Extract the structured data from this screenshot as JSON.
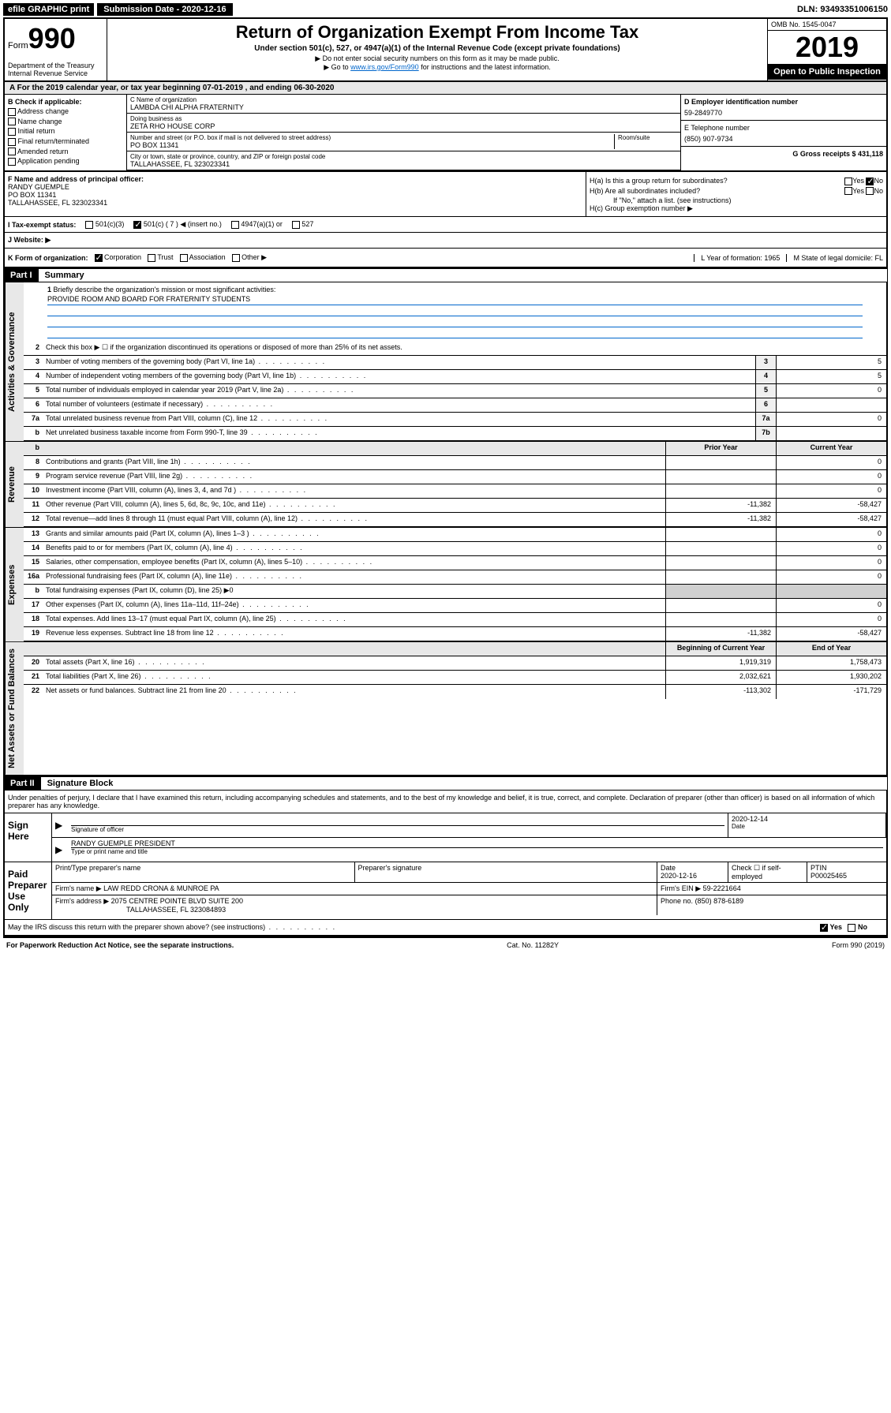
{
  "top": {
    "efile": "efile GRAPHIC print",
    "submission": "Submission Date - 2020-12-16",
    "dln": "DLN: 93493351006150"
  },
  "header": {
    "form_prefix": "Form",
    "form_num": "990",
    "dept": "Department of the Treasury\nInternal Revenue Service",
    "title": "Return of Organization Exempt From Income Tax",
    "subtitle": "Under section 501(c), 527, or 4947(a)(1) of the Internal Revenue Code (except private foundations)",
    "note1": "▶ Do not enter social security numbers on this form as it may be made public.",
    "note2_pre": "▶ Go to ",
    "note2_link": "www.irs.gov/Form990",
    "note2_post": " for instructions and the latest information.",
    "omb": "OMB No. 1545-0047",
    "year": "2019",
    "open": "Open to Public Inspection"
  },
  "period": "A   For the 2019 calendar year, or tax year beginning 07-01-2019    , and ending 06-30-2020",
  "colB": {
    "label": "B Check if applicable:",
    "items": [
      "Address change",
      "Name change",
      "Initial return",
      "Final return/terminated",
      "Amended return",
      "Application pending"
    ]
  },
  "colC": {
    "name_label": "C Name of organization",
    "name": "LAMBDA CHI ALPHA FRATERNITY",
    "dba_label": "Doing business as",
    "dba": "ZETA RHO HOUSE CORP",
    "addr_label": "Number and street (or P.O. box if mail is not delivered to street address)",
    "room_label": "Room/suite",
    "addr": "PO BOX 11341",
    "city_label": "City or town, state or province, country, and ZIP or foreign postal code",
    "city": "TALLAHASSEE, FL  323023341"
  },
  "colDE": {
    "d_label": "D Employer identification number",
    "d_val": "59-2849770",
    "e_label": "E Telephone number",
    "e_val": "(850) 907-9734",
    "g_label": "G Gross receipts $ 431,118"
  },
  "officer": {
    "label": "F  Name and address of principal officer:",
    "name": "RANDY GUEMPLE",
    "addr1": "PO BOX 11341",
    "addr2": "TALLAHASSEE, FL  323023341"
  },
  "h": {
    "a": "H(a)  Is this a group return for subordinates?",
    "b": "H(b)  Are all subordinates included?",
    "b_note": "If \"No,\" attach a list. (see instructions)",
    "c": "H(c)  Group exemption number ▶",
    "yes": "Yes",
    "no": "No"
  },
  "tax": {
    "i_label": "I   Tax-exempt status:",
    "opts": [
      "501(c)(3)",
      "501(c) ( 7 ) ◀ (insert no.)",
      "4947(a)(1) or",
      "527"
    ]
  },
  "website": "J   Website: ▶",
  "k": {
    "label": "K Form of organization:",
    "opts": [
      "Corporation",
      "Trust",
      "Association",
      "Other ▶"
    ],
    "l": "L Year of formation: 1965",
    "m": "M State of legal domicile: FL"
  },
  "part1": {
    "header": "Part I",
    "title": "Summary"
  },
  "mission": {
    "num": "1",
    "label": "Briefly describe the organization's mission or most significant activities:",
    "text": "PROVIDE ROOM AND BOARD FOR FRATERNITY STUDENTS"
  },
  "governance": {
    "label": "Activities & Governance",
    "rows": [
      {
        "n": "2",
        "t": "Check this box ▶ ☐  if the organization discontinued its operations or disposed of more than 25% of its net assets."
      },
      {
        "n": "3",
        "t": "Number of voting members of the governing body (Part VI, line 1a)",
        "box": "3",
        "v": "5"
      },
      {
        "n": "4",
        "t": "Number of independent voting members of the governing body (Part VI, line 1b)",
        "box": "4",
        "v": "5"
      },
      {
        "n": "5",
        "t": "Total number of individuals employed in calendar year 2019 (Part V, line 2a)",
        "box": "5",
        "v": "0"
      },
      {
        "n": "6",
        "t": "Total number of volunteers (estimate if necessary)",
        "box": "6",
        "v": ""
      },
      {
        "n": "7a",
        "t": "Total unrelated business revenue from Part VIII, column (C), line 12",
        "box": "7a",
        "v": "0"
      },
      {
        "n": "b",
        "t": "Net unrelated business taxable income from Form 990-T, line 39",
        "box": "7b",
        "v": ""
      }
    ]
  },
  "revenue": {
    "label": "Revenue",
    "h1": "Prior Year",
    "h2": "Current Year",
    "rows": [
      {
        "n": "8",
        "t": "Contributions and grants (Part VIII, line 1h)",
        "v1": "",
        "v2": "0"
      },
      {
        "n": "9",
        "t": "Program service revenue (Part VIII, line 2g)",
        "v1": "",
        "v2": "0"
      },
      {
        "n": "10",
        "t": "Investment income (Part VIII, column (A), lines 3, 4, and 7d )",
        "v1": "",
        "v2": "0"
      },
      {
        "n": "11",
        "t": "Other revenue (Part VIII, column (A), lines 5, 6d, 8c, 9c, 10c, and 11e)",
        "v1": "-11,382",
        "v2": "-58,427"
      },
      {
        "n": "12",
        "t": "Total revenue—add lines 8 through 11 (must equal Part VIII, column (A), line 12)",
        "v1": "-11,382",
        "v2": "-58,427"
      }
    ]
  },
  "expenses": {
    "label": "Expenses",
    "rows": [
      {
        "n": "13",
        "t": "Grants and similar amounts paid (Part IX, column (A), lines 1–3 )",
        "v1": "",
        "v2": "0"
      },
      {
        "n": "14",
        "t": "Benefits paid to or for members (Part IX, column (A), line 4)",
        "v1": "",
        "v2": "0"
      },
      {
        "n": "15",
        "t": "Salaries, other compensation, employee benefits (Part IX, column (A), lines 5–10)",
        "v1": "",
        "v2": "0"
      },
      {
        "n": "16a",
        "t": "Professional fundraising fees (Part IX, column (A), line 11e)",
        "v1": "",
        "v2": "0"
      },
      {
        "n": "b",
        "t": "Total fundraising expenses (Part IX, column (D), line 25) ▶0",
        "shaded": true
      },
      {
        "n": "17",
        "t": "Other expenses (Part IX, column (A), lines 11a–11d, 11f–24e)",
        "v1": "",
        "v2": "0"
      },
      {
        "n": "18",
        "t": "Total expenses. Add lines 13–17 (must equal Part IX, column (A), line 25)",
        "v1": "",
        "v2": "0"
      },
      {
        "n": "19",
        "t": "Revenue less expenses. Subtract line 18 from line 12",
        "v1": "-11,382",
        "v2": "-58,427"
      }
    ]
  },
  "netassets": {
    "label": "Net Assets or Fund Balances",
    "h1": "Beginning of Current Year",
    "h2": "End of Year",
    "rows": [
      {
        "n": "20",
        "t": "Total assets (Part X, line 16)",
        "v1": "1,919,319",
        "v2": "1,758,473"
      },
      {
        "n": "21",
        "t": "Total liabilities (Part X, line 26)",
        "v1": "2,032,621",
        "v2": "1,930,202"
      },
      {
        "n": "22",
        "t": "Net assets or fund balances. Subtract line 21 from line 20",
        "v1": "-113,302",
        "v2": "-171,729"
      }
    ]
  },
  "part2": {
    "header": "Part II",
    "title": "Signature Block",
    "declaration": "Under penalties of perjury, I declare that I have examined this return, including accompanying schedules and statements, and to the best of my knowledge and belief, it is true, correct, and complete. Declaration of preparer (other than officer) is based on all information of which preparer has any knowledge."
  },
  "sign": {
    "label": "Sign Here",
    "sig_label": "Signature of officer",
    "date": "2020-12-14",
    "date_label": "Date",
    "name": "RANDY GUEMPLE  PRESIDENT",
    "name_label": "Type or print name and title"
  },
  "preparer": {
    "label": "Paid Preparer Use Only",
    "h1": "Print/Type preparer's name",
    "h2": "Preparer's signature",
    "h3": "Date",
    "h4": "Check ☐ if self-employed",
    "h5": "PTIN",
    "date": "2020-12-16",
    "ptin": "P00025465",
    "firm_label": "Firm's name    ▶",
    "firm": "LAW REDD CRONA & MUNROE PA",
    "ein_label": "Firm's EIN ▶",
    "ein": "59-2221664",
    "addr_label": "Firm's address ▶",
    "addr1": "2075 CENTRE POINTE BLVD SUITE 200",
    "addr2": "TALLAHASSEE, FL  323084893",
    "phone_label": "Phone no.",
    "phone": "(850) 878-6189"
  },
  "discuss": "May the IRS discuss this return with the preparer shown above? (see instructions)",
  "footer": {
    "left": "For Paperwork Reduction Act Notice, see the separate instructions.",
    "mid": "Cat. No. 11282Y",
    "right": "Form 990 (2019)"
  }
}
